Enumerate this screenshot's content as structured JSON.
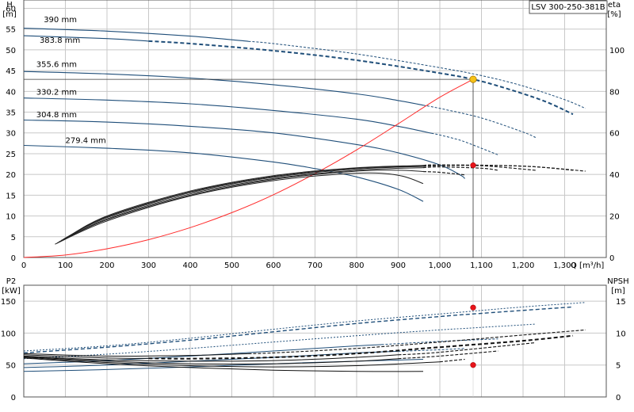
{
  "colors": {
    "impeller": "#1f4e79",
    "efficiency": "#222222",
    "system": "#ff2a2a",
    "duty_marker": "#e8141b",
    "op_point": "#f5c218",
    "grid": "#c8c8c8"
  },
  "chart_data": [
    {
      "type": "line",
      "title": "LSV 300-250-381B",
      "xlabel": "Q [m³/h]",
      "ylabel_lines": [
        "H",
        "[m]"
      ],
      "y2label_lines": [
        "eta",
        "[%]"
      ],
      "xlim": [
        0,
        1400
      ],
      "ylim": [
        0,
        62
      ],
      "y2lim": [
        0,
        124
      ],
      "x_ticks": [
        0,
        100,
        200,
        300,
        400,
        500,
        600,
        700,
        800,
        900,
        1000,
        1100,
        1200,
        1300
      ],
      "x_tick_labels": [
        "0",
        "100",
        "200",
        "300",
        "400",
        "500",
        "600",
        "700",
        "800",
        "900",
        "1,000",
        "1,100",
        "1,200",
        "1,300"
      ],
      "y_ticks": [
        0,
        5,
        10,
        15,
        20,
        25,
        30,
        35,
        40,
        45,
        50,
        55,
        60
      ],
      "y2_ticks": [
        0,
        20,
        40,
        60,
        80,
        100
      ],
      "grid": true,
      "series": [
        {
          "name": "390 mm",
          "kind": "head",
          "x": [
            0,
            200,
            400,
            600,
            800,
            1000,
            1100,
            1200,
            1300,
            1350
          ],
          "y": [
            55.2,
            54.5,
            53.3,
            51.5,
            49.0,
            45.7,
            43.8,
            41.3,
            38.0,
            35.9
          ]
        },
        {
          "name": "383.8 mm",
          "kind": "head",
          "x": [
            0,
            200,
            400,
            600,
            800,
            1000,
            1080,
            1150,
            1250,
            1320
          ],
          "y": [
            53.4,
            52.7,
            51.5,
            49.8,
            47.5,
            44.4,
            42.9,
            41.0,
            37.7,
            34.5
          ]
        },
        {
          "name": "355.6 mm",
          "kind": "head",
          "x": [
            0,
            200,
            400,
            600,
            800,
            900,
            1000,
            1100,
            1200,
            1230
          ],
          "y": [
            44.8,
            44.2,
            43.2,
            41.6,
            39.4,
            37.8,
            35.9,
            33.6,
            30.2,
            28.9
          ]
        },
        {
          "name": "330.2 mm",
          "kind": "head",
          "x": [
            0,
            200,
            400,
            600,
            800,
            900,
            1000,
            1050,
            1100,
            1140
          ],
          "y": [
            38.4,
            37.9,
            37.0,
            35.4,
            33.3,
            31.6,
            29.5,
            28.2,
            26.3,
            24.7
          ]
        },
        {
          "name": "304.8 mm",
          "kind": "head",
          "x": [
            0,
            200,
            400,
            600,
            800,
            900,
            1000,
            1050,
            1060
          ],
          "y": [
            33.1,
            32.6,
            31.6,
            30.0,
            27.2,
            25.2,
            22.3,
            19.8,
            19.0
          ]
        },
        {
          "name": "279.4 mm",
          "kind": "head",
          "x": [
            0,
            200,
            400,
            600,
            700,
            800,
            900,
            960
          ],
          "y": [
            27.0,
            26.3,
            25.2,
            23.0,
            21.4,
            19.4,
            16.4,
            13.5
          ]
        },
        {
          "kind": "system",
          "x": [
            0,
            100,
            200,
            300,
            400,
            500,
            600,
            700,
            800,
            900,
            1000,
            1080
          ],
          "y": [
            0,
            0.6,
            2.1,
            4.3,
            7.2,
            10.8,
            15.1,
            20.2,
            25.9,
            32.2,
            38.6,
            42.9
          ]
        },
        {
          "kind": "eta",
          "x": [
            75,
            200,
            400,
            600,
            800,
            900,
            960
          ],
          "y": [
            3.2,
            8.8,
            14.8,
            18.5,
            20.3,
            19.8,
            17.8
          ]
        },
        {
          "kind": "eta",
          "x": [
            80,
            200,
            400,
            600,
            800,
            900,
            1000,
            1060
          ],
          "y": [
            3.5,
            9.1,
            15.0,
            18.8,
            20.8,
            21.0,
            20.5,
            19.9
          ]
        },
        {
          "kind": "eta",
          "x": [
            85,
            200,
            400,
            600,
            800,
            1000,
            1100,
            1140
          ],
          "y": [
            3.8,
            9.3,
            15.3,
            19.0,
            21.0,
            21.8,
            21.5,
            21.0
          ]
        },
        {
          "kind": "eta",
          "x": [
            90,
            200,
            400,
            600,
            800,
            1000,
            1100,
            1230
          ],
          "y": [
            4.1,
            9.6,
            15.6,
            19.3,
            21.3,
            22.1,
            22.1,
            21.0
          ]
        },
        {
          "kind": "eta",
          "x": [
            95,
            200,
            400,
            600,
            800,
            1000,
            1200,
            1320
          ],
          "y": [
            4.4,
            9.8,
            15.8,
            19.5,
            21.5,
            22.2,
            22.0,
            21.0
          ]
        },
        {
          "kind": "eta",
          "x": [
            100,
            200,
            400,
            600,
            800,
            1000,
            1200,
            1350
          ],
          "y": [
            4.6,
            10.0,
            16.0,
            19.7,
            21.6,
            22.3,
            22.0,
            20.8
          ]
        }
      ],
      "markers": [
        {
          "kind": "op_point",
          "x": 1080,
          "y": 42.9
        },
        {
          "kind": "duty",
          "x": 1080,
          "y": 22.2
        }
      ],
      "labels": [
        "390 mm",
        "383.8 mm",
        "355.6 mm",
        "330.2 mm",
        "304.8 mm",
        "279.4 mm"
      ]
    },
    {
      "type": "line",
      "ylabel_lines": [
        "P2",
        "[kW]"
      ],
      "y2label_lines": [
        "NPSH",
        "[m]"
      ],
      "xlim": [
        0,
        1400
      ],
      "ylim": [
        0,
        175
      ],
      "y2lim": [
        0,
        17.5
      ],
      "y_ticks": [
        0,
        50,
        100,
        150
      ],
      "y2_ticks": [
        0,
        5,
        10,
        15
      ],
      "grid": true,
      "series": [
        {
          "kind": "p2",
          "x": [
            0,
            200,
            400,
            600,
            800,
            1000,
            1200,
            1350
          ],
          "y": [
            72,
            80,
            92,
            106,
            119,
            130,
            141,
            148
          ]
        },
        {
          "kind": "p2",
          "x": [
            0,
            200,
            400,
            600,
            800,
            1000,
            1100,
            1320
          ],
          "y": [
            69,
            78,
            89,
            102,
            115,
            126,
            131,
            141
          ]
        },
        {
          "kind": "p2",
          "x": [
            0,
            200,
            400,
            600,
            800,
            1000,
            1230
          ],
          "y": [
            60,
            67,
            76,
            86,
            96,
            105,
            114
          ]
        },
        {
          "kind": "p2",
          "x": [
            0,
            200,
            400,
            600,
            800,
            1000,
            1140
          ],
          "y": [
            52,
            57,
            64,
            72,
            80,
            87,
            91
          ]
        },
        {
          "kind": "p2",
          "x": [
            0,
            200,
            400,
            600,
            800,
            1000,
            1060
          ],
          "y": [
            46,
            50,
            56,
            62,
            69,
            74,
            76
          ]
        },
        {
          "kind": "p2",
          "x": [
            0,
            200,
            400,
            600,
            800,
            960
          ],
          "y": [
            40,
            43,
            47,
            52,
            56,
            59
          ]
        },
        {
          "kind": "npsh",
          "x": [
            0,
            200,
            400,
            600,
            800,
            1000,
            1200,
            1350
          ],
          "y": [
            6.8,
            6.4,
            6.5,
            6.9,
            7.6,
            8.6,
            9.7,
            10.5
          ]
        },
        {
          "kind": "npsh",
          "x": [
            0,
            200,
            400,
            600,
            800,
            1000,
            1200,
            1320
          ],
          "y": [
            6.6,
            6.1,
            6.0,
            6.2,
            6.8,
            7.8,
            8.8,
            9.6
          ]
        },
        {
          "kind": "npsh",
          "x": [
            0,
            200,
            400,
            600,
            800,
            1000,
            1230
          ],
          "y": [
            6.4,
            5.8,
            5.6,
            5.7,
            6.2,
            7.0,
            8.5
          ]
        },
        {
          "kind": "npsh",
          "x": [
            0,
            200,
            400,
            600,
            800,
            1000,
            1140
          ],
          "y": [
            6.3,
            5.6,
            5.2,
            5.2,
            5.6,
            6.4,
            7.2
          ]
        },
        {
          "kind": "npsh",
          "x": [
            0,
            200,
            400,
            600,
            800,
            1000,
            1060
          ],
          "y": [
            6.2,
            5.4,
            4.9,
            4.7,
            4.9,
            5.5,
            5.9
          ]
        },
        {
          "kind": "npsh",
          "x": [
            0,
            200,
            400,
            600,
            800,
            960
          ],
          "y": [
            6.1,
            5.2,
            4.6,
            4.2,
            4.0,
            4.0
          ]
        }
      ],
      "markers": [
        {
          "kind": "duty_p2",
          "x": 1080,
          "y": 140
        },
        {
          "kind": "duty_npsh",
          "x": 1080,
          "y": 5.0
        }
      ]
    }
  ]
}
